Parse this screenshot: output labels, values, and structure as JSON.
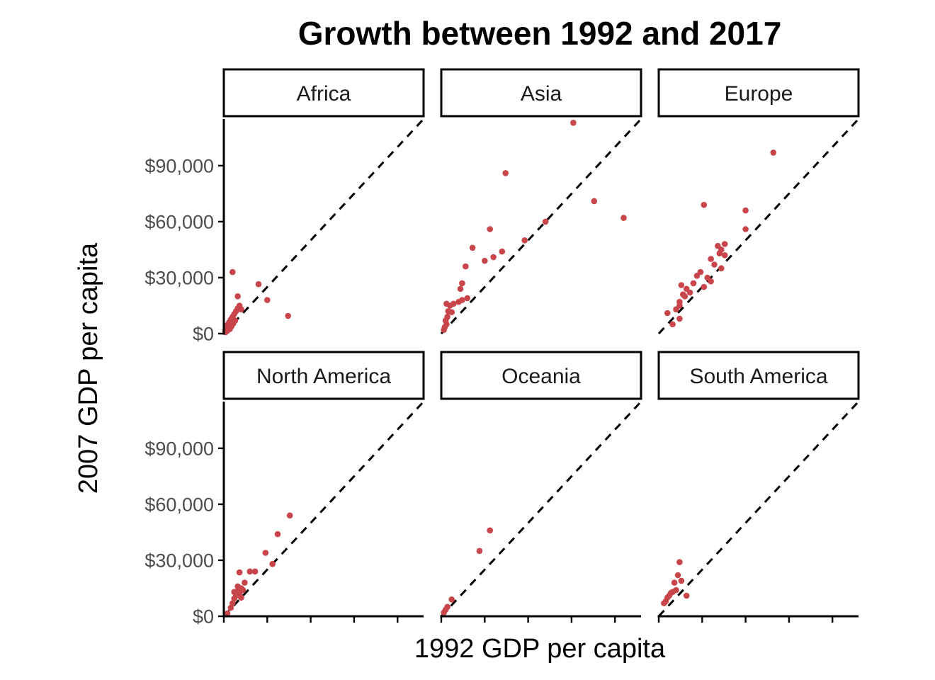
{
  "chart_data": {
    "type": "scatter",
    "title": "Growth between 1992 and 2017",
    "xlabel": "1992 GDP per capita",
    "ylabel": "2007 GDP per capita",
    "xlim": [
      0,
      115000
    ],
    "ylim": [
      0,
      115000
    ],
    "y_ticks": [
      0,
      30000,
      60000,
      90000
    ],
    "y_tick_labels": [
      "$0",
      "$30,000",
      "$60,000",
      "$90,000"
    ],
    "x_ticks": [
      0,
      25000,
      50000,
      75000,
      100000
    ],
    "x_tick_labels": [
      "",
      "",
      "",
      "",
      ""
    ],
    "reference_line": "y = x (dashed)",
    "point_color": "#C8464B",
    "grid": false,
    "layout": "facet_wrap 2 rows x 3 columns",
    "facets": [
      {
        "name": "Africa",
        "points": [
          [
            800,
            1500
          ],
          [
            1200,
            2500
          ],
          [
            2000,
            3500
          ],
          [
            1500,
            4200
          ],
          [
            2500,
            5000
          ],
          [
            3000,
            6000
          ],
          [
            4000,
            7500
          ],
          [
            5000,
            9000
          ],
          [
            6000,
            10500
          ],
          [
            7000,
            12000
          ],
          [
            8000,
            13500
          ],
          [
            9000,
            15000
          ],
          [
            10000,
            13000
          ],
          [
            3500,
            2500
          ],
          [
            5500,
            5500
          ],
          [
            6500,
            7000
          ],
          [
            8000,
            20000
          ],
          [
            20000,
            26500
          ],
          [
            25000,
            18000
          ],
          [
            37000,
            9500
          ],
          [
            5000,
            33000
          ],
          [
            1000,
            800
          ],
          [
            2000,
            1500
          ],
          [
            4500,
            4000
          ]
        ]
      },
      {
        "name": "Asia",
        "points": [
          [
            1500,
            2000
          ],
          [
            2000,
            3500
          ],
          [
            3000,
            5000
          ],
          [
            2500,
            7000
          ],
          [
            3500,
            9000
          ],
          [
            4000,
            12000
          ],
          [
            6000,
            11500
          ],
          [
            5000,
            15000
          ],
          [
            7000,
            16000
          ],
          [
            10000,
            17000
          ],
          [
            12000,
            18000
          ],
          [
            15000,
            19000
          ],
          [
            3000,
            16000
          ],
          [
            11000,
            24000
          ],
          [
            12000,
            27000
          ],
          [
            14000,
            36000
          ],
          [
            18000,
            46000
          ],
          [
            25000,
            39000
          ],
          [
            30000,
            41000
          ],
          [
            35000,
            44000
          ],
          [
            28000,
            56000
          ],
          [
            48000,
            50000
          ],
          [
            60000,
            60000
          ],
          [
            37000,
            86000
          ],
          [
            76000,
            113000
          ],
          [
            88000,
            71000
          ],
          [
            105000,
            62000
          ]
        ]
      },
      {
        "name": "Europe",
        "points": [
          [
            5000,
            11000
          ],
          [
            8000,
            5000
          ],
          [
            12000,
            8000
          ],
          [
            10000,
            13000
          ],
          [
            12000,
            17000
          ],
          [
            14000,
            21000
          ],
          [
            13000,
            26000
          ],
          [
            16000,
            24000
          ],
          [
            20000,
            27000
          ],
          [
            22000,
            31000
          ],
          [
            24000,
            33000
          ],
          [
            26000,
            25000
          ],
          [
            28000,
            30000
          ],
          [
            30000,
            40000
          ],
          [
            32000,
            37000
          ],
          [
            34000,
            47000
          ],
          [
            35000,
            43000
          ],
          [
            36000,
            45000
          ],
          [
            38000,
            48000
          ],
          [
            36000,
            35000
          ],
          [
            38000,
            42000
          ],
          [
            30000,
            28000
          ],
          [
            15000,
            20000
          ],
          [
            26000,
            69000
          ],
          [
            50000,
            56000
          ],
          [
            50000,
            66000
          ],
          [
            66000,
            97000
          ],
          [
            12000,
            15000
          ],
          [
            18000,
            22000
          ]
        ]
      },
      {
        "name": "North America",
        "points": [
          [
            2000,
            1500
          ],
          [
            4000,
            4500
          ],
          [
            5000,
            7000
          ],
          [
            6000,
            9500
          ],
          [
            7000,
            11000
          ],
          [
            8000,
            13500
          ],
          [
            9000,
            12000
          ],
          [
            10000,
            15000
          ],
          [
            11000,
            14000
          ],
          [
            6000,
            13000
          ],
          [
            8000,
            16000
          ],
          [
            12000,
            18000
          ],
          [
            15000,
            24000
          ],
          [
            18000,
            24000
          ],
          [
            9000,
            23500
          ],
          [
            24000,
            34000
          ],
          [
            28000,
            28000
          ],
          [
            31000,
            44000
          ],
          [
            38000,
            54000
          ],
          [
            10000,
            10000
          ]
        ]
      },
      {
        "name": "Oceania",
        "points": [
          [
            1500,
            2000
          ],
          [
            2500,
            3500
          ],
          [
            3500,
            5000
          ],
          [
            6000,
            9000
          ],
          [
            22000,
            35000
          ],
          [
            28000,
            46000
          ]
        ]
      },
      {
        "name": "South America",
        "points": [
          [
            3000,
            7000
          ],
          [
            4000,
            8000
          ],
          [
            5000,
            10000
          ],
          [
            6000,
            11000
          ],
          [
            7000,
            12500
          ],
          [
            8000,
            13000
          ],
          [
            10000,
            14000
          ],
          [
            9000,
            18000
          ],
          [
            11000,
            22000
          ],
          [
            12000,
            29000
          ],
          [
            13000,
            19000
          ],
          [
            16000,
            11000
          ]
        ]
      }
    ]
  }
}
